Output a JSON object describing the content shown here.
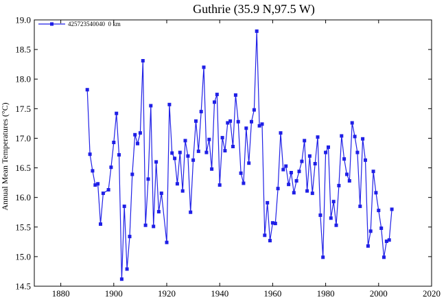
{
  "chart_data": {
    "type": "line",
    "title": "Guthrie (35.9 N,97.5 W)",
    "ylabel": "Annual Mean Temperatures (°C)",
    "xlabel": "",
    "xlim": [
      1870,
      2020
    ],
    "ylim": [
      14.5,
      19.0
    ],
    "x_ticks": [
      1880,
      1900,
      1920,
      1940,
      1960,
      1980,
      2000,
      2020
    ],
    "y_ticks": [
      "14.5",
      "15.0",
      "15.5",
      "16.0",
      "16.5",
      "17.0",
      "17.5",
      "18.0",
      "18.5",
      "19.0"
    ],
    "grid": false,
    "legend_position": "top-left",
    "series_color": "#1f1fe6",
    "series": [
      {
        "name": "425723540040  0 km",
        "x": [
          1890,
          1891,
          1892,
          1893,
          1894,
          1895,
          1896,
          1898,
          1899,
          1900,
          1901,
          1902,
          1903,
          1904,
          1905,
          1906,
          1907,
          1908,
          1909,
          1910,
          1911,
          1912,
          1913,
          1914,
          1915,
          1916,
          1917,
          1918,
          1920,
          1921,
          1922,
          1923,
          1924,
          1925,
          1926,
          1927,
          1928,
          1929,
          1930,
          1931,
          1932,
          1933,
          1934,
          1935,
          1936,
          1937,
          1938,
          1939,
          1940,
          1941,
          1942,
          1943,
          1944,
          1945,
          1946,
          1947,
          1948,
          1949,
          1950,
          1951,
          1952,
          1953,
          1954,
          1955,
          1956,
          1957,
          1958,
          1959,
          1960,
          1961,
          1962,
          1963,
          1964,
          1965,
          1966,
          1967,
          1968,
          1969,
          1970,
          1971,
          1972,
          1973,
          1974,
          1975,
          1976,
          1977,
          1978,
          1979,
          1980,
          1981,
          1982,
          1983,
          1984,
          1985,
          1986,
          1987,
          1988,
          1989,
          1990,
          1991,
          1992,
          1993,
          1994,
          1995,
          1996,
          1997,
          1998,
          1999,
          2000,
          2001,
          2002,
          2003,
          2004,
          2005
        ],
        "y": [
          17.82,
          16.73,
          16.45,
          16.21,
          16.23,
          15.55,
          16.07,
          16.13,
          16.51,
          16.93,
          17.42,
          16.72,
          14.62,
          15.85,
          14.79,
          15.34,
          16.39,
          17.06,
          16.91,
          17.09,
          18.31,
          15.53,
          16.31,
          17.55,
          15.51,
          16.6,
          15.76,
          16.07,
          15.24,
          17.57,
          16.75,
          16.66,
          16.23,
          16.76,
          16.11,
          16.96,
          16.7,
          15.75,
          16.63,
          17.29,
          16.78,
          17.45,
          18.2,
          16.76,
          16.98,
          16.48,
          17.61,
          17.74,
          16.21,
          17.01,
          16.79,
          17.26,
          17.29,
          16.86,
          17.73,
          17.28,
          16.41,
          16.24,
          17.17,
          16.58,
          17.28,
          17.48,
          18.81,
          17.21,
          17.24,
          15.36,
          15.91,
          15.27,
          15.57,
          15.56,
          16.15,
          17.09,
          16.47,
          16.53,
          16.22,
          16.42,
          16.08,
          16.28,
          16.44,
          16.61,
          16.96,
          16.11,
          16.7,
          16.07,
          16.57,
          17.02,
          15.7,
          14.99,
          16.76,
          16.85,
          15.65,
          15.93,
          15.53,
          16.2,
          17.04,
          16.65,
          16.39,
          16.28,
          17.26,
          17.03,
          16.76,
          15.85,
          16.99,
          16.63,
          15.18,
          15.43,
          16.44,
          16.08,
          15.78,
          15.48,
          14.99,
          15.26,
          15.28,
          15.8
        ]
      }
    ]
  }
}
